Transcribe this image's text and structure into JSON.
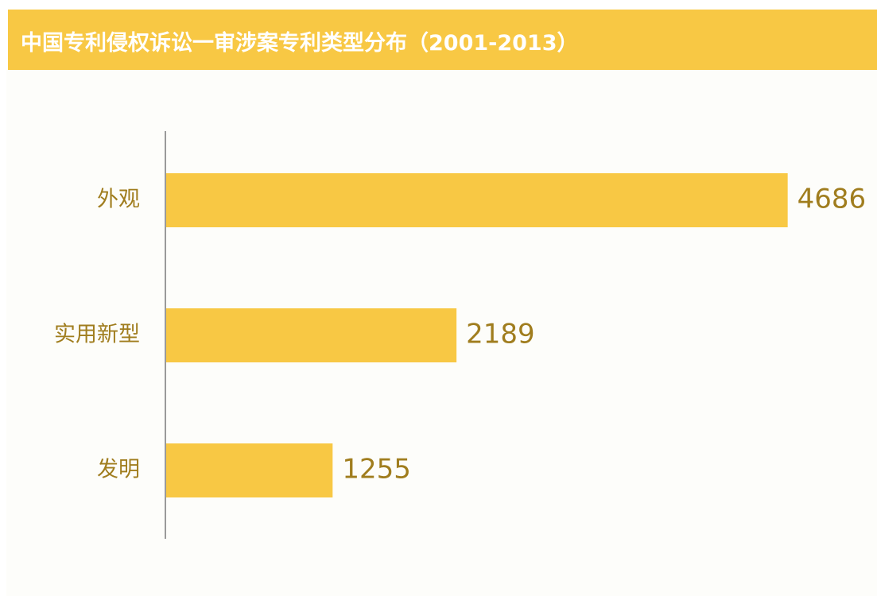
{
  "chart_data": {
    "type": "bar",
    "orientation": "horizontal",
    "title": "中国专利侵权诉讼一审涉案专利类型分布（2001-2013）",
    "categories": [
      "外观",
      "实用新型",
      "发明"
    ],
    "values": [
      4686,
      2189,
      1255
    ],
    "colors": {
      "bar": "#f8c844",
      "title_bar": "#f8c844",
      "title_text": "#ffffff",
      "label": "#a07d1e",
      "axis": "#9a9a9a"
    },
    "grid": false,
    "legend": "none",
    "xlim": [
      0,
      4700
    ]
  }
}
